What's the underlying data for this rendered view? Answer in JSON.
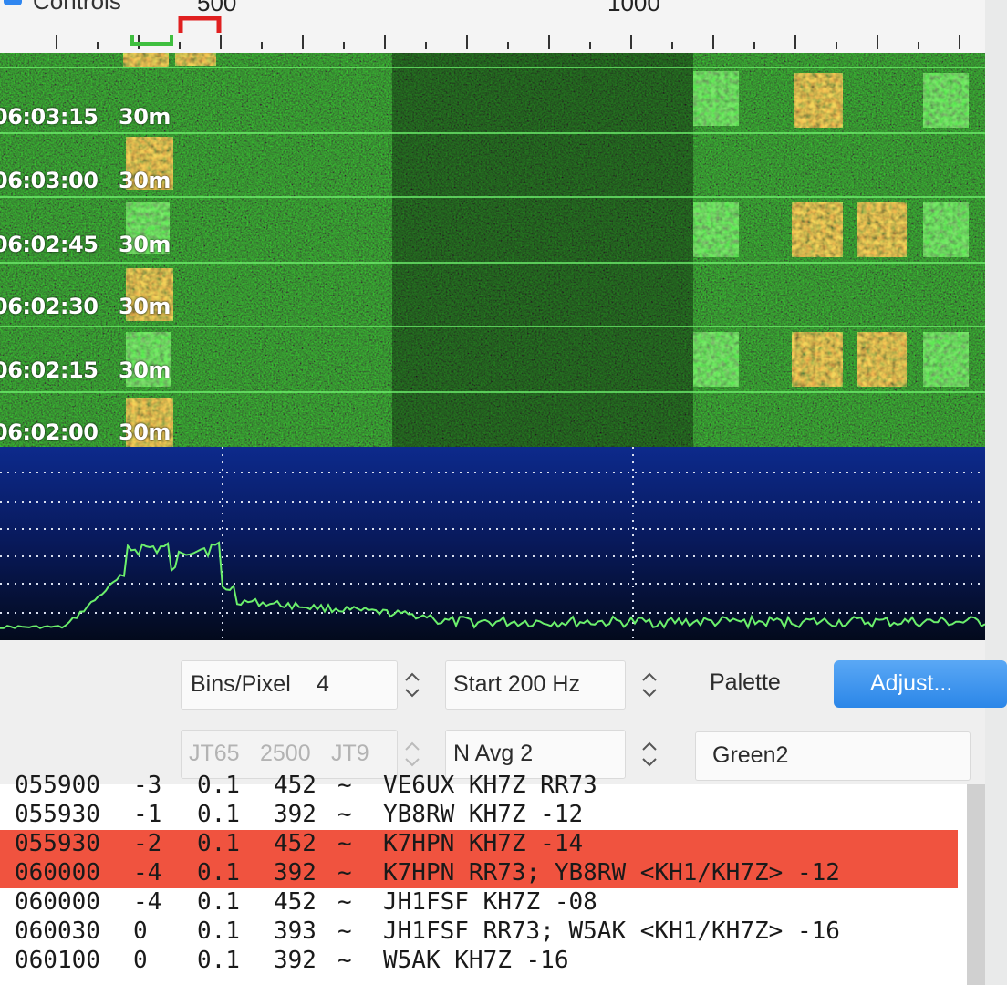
{
  "topbar": {
    "controls_label": "Controls",
    "axis_labels": [
      "500",
      "1000"
    ]
  },
  "waterfall": {
    "rows": [
      {
        "time": "06:03:15",
        "band": "30m"
      },
      {
        "time": "06:03:00",
        "band": "30m"
      },
      {
        "time": "06:02:45",
        "band": "30m"
      },
      {
        "time": "06:02:30",
        "band": "30m"
      },
      {
        "time": "06:02:15",
        "band": "30m"
      },
      {
        "time": "06:02:00",
        "band": "30m"
      }
    ]
  },
  "controls": {
    "bins_label": "Bins/Pixel",
    "bins_value": "4",
    "start_value": "Start 200 Hz",
    "palette_label": "Palette",
    "adjust_label": "Adjust...",
    "mode_left": "JT65",
    "mode_split": "2500",
    "mode_right": "JT9",
    "navg_value": "N Avg 2",
    "palette_value": "Green2"
  },
  "decodes": {
    "rows": [
      {
        "utc": "055900",
        "db": "-3",
        "dt": "0.1",
        "freq": "452",
        "sym": "~",
        "msg": "VE6UX KH7Z RR73",
        "highlight": false
      },
      {
        "utc": "055930",
        "db": "-1",
        "dt": "0.1",
        "freq": "392",
        "sym": "~",
        "msg": "YB8RW KH7Z -12",
        "highlight": false
      },
      {
        "utc": "055930",
        "db": "-2",
        "dt": "0.1",
        "freq": "452",
        "sym": "~",
        "msg": "K7HPN KH7Z -14",
        "highlight": true
      },
      {
        "utc": "060000",
        "db": "-4",
        "dt": "0.1",
        "freq": "392",
        "sym": "~",
        "msg": "K7HPN RR73; YB8RW <KH1/KH7Z> -12",
        "highlight": true
      },
      {
        "utc": "060000",
        "db": "-4",
        "dt": "0.1",
        "freq": "452",
        "sym": "~",
        "msg": "JH1FSF KH7Z -08",
        "highlight": false
      },
      {
        "utc": "060030",
        "db": "0",
        "dt": "0.1",
        "freq": "393",
        "sym": "~",
        "msg": "JH1FSF RR73; W5AK <KH1/KH7Z> -16",
        "highlight": false
      },
      {
        "utc": "060100",
        "db": "0",
        "dt": "0.1",
        "freq": "392",
        "sym": "~",
        "msg": "W5AK KH7Z -16",
        "highlight": false
      }
    ]
  },
  "colors": {
    "waterfall_bg": "#0b1a09",
    "signal_hot": "#e8502a",
    "separator": "#6ef06e",
    "spectrum_bg": "#0a1f66",
    "spectrum_trace": "#6cf06c",
    "highlight_row": "#f0533f",
    "accent_blue": "#2b86e8"
  }
}
